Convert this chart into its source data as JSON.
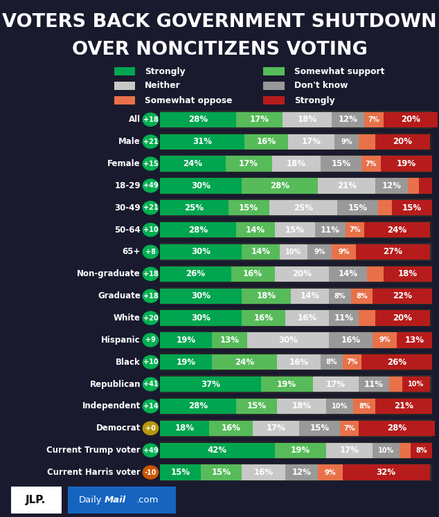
{
  "title_line1": "VOTERS BACK GOVERNMENT SHUTDOWN",
  "title_line2": "OVER NONCITIZENS VOTING",
  "rows": [
    {
      "label": "All",
      "badge": "+18",
      "badge_color": "#00b050",
      "values": [
        28,
        17,
        18,
        12,
        7,
        20
      ]
    },
    {
      "label": "Male",
      "badge": "+21",
      "badge_color": "#00b050",
      "values": [
        31,
        16,
        17,
        9,
        6,
        20
      ]
    },
    {
      "label": "Female",
      "badge": "+15",
      "badge_color": "#00b050",
      "values": [
        24,
        17,
        18,
        15,
        7,
        19
      ]
    },
    {
      "label": "18-29",
      "badge": "+49",
      "badge_color": "#00b050",
      "values": [
        30,
        28,
        21,
        12,
        4,
        5
      ]
    },
    {
      "label": "30-49",
      "badge": "+21",
      "badge_color": "#00b050",
      "values": [
        25,
        15,
        25,
        15,
        5,
        15
      ]
    },
    {
      "label": "50-64",
      "badge": "+10",
      "badge_color": "#00b050",
      "values": [
        28,
        14,
        15,
        11,
        7,
        24
      ]
    },
    {
      "label": "65+",
      "badge": "+8",
      "badge_color": "#00b050",
      "values": [
        30,
        14,
        10,
        9,
        9,
        27
      ]
    },
    {
      "label": "Non-graduate",
      "badge": "+18",
      "badge_color": "#00b050",
      "values": [
        26,
        16,
        20,
        14,
        6,
        18
      ]
    },
    {
      "label": "Graduate",
      "badge": "+18",
      "badge_color": "#00b050",
      "values": [
        30,
        18,
        14,
        8,
        8,
        22
      ]
    },
    {
      "label": "White",
      "badge": "+20",
      "badge_color": "#00b050",
      "values": [
        30,
        16,
        16,
        11,
        6,
        20
      ]
    },
    {
      "label": "Hispanic",
      "badge": "+9",
      "badge_color": "#00b050",
      "values": [
        19,
        13,
        30,
        16,
        9,
        13
      ]
    },
    {
      "label": "Black",
      "badge": "+10",
      "badge_color": "#00b050",
      "values": [
        19,
        24,
        16,
        8,
        7,
        26
      ]
    },
    {
      "label": "Republican",
      "badge": "+41",
      "badge_color": "#00b050",
      "values": [
        37,
        19,
        17,
        11,
        5,
        10
      ]
    },
    {
      "label": "Independent",
      "badge": "+14",
      "badge_color": "#00b050",
      "values": [
        28,
        15,
        18,
        10,
        8,
        21
      ]
    },
    {
      "label": "Democrat",
      "badge": "+0",
      "badge_color": "#b8960c",
      "values": [
        18,
        16,
        17,
        15,
        7,
        28
      ]
    },
    {
      "label": "Current Trump voter",
      "badge": "+49",
      "badge_color": "#00b050",
      "values": [
        42,
        19,
        17,
        10,
        4,
        8
      ]
    },
    {
      "label": "Current Harris voter",
      "badge": "-10",
      "badge_color": "#cc5500",
      "values": [
        15,
        15,
        16,
        12,
        9,
        32
      ]
    }
  ],
  "bar_colors": [
    "#00a550",
    "#57bb5a",
    "#c8c8c8",
    "#999999",
    "#e8714a",
    "#b71c1c"
  ],
  "legend_items": [
    {
      "label": "Strongly",
      "color": "#00a550"
    },
    {
      "label": "Somewhat support",
      "color": "#57bb5a"
    },
    {
      "label": "Neither",
      "color": "#c8c8c8"
    },
    {
      "label": "Don't know",
      "color": "#999999"
    },
    {
      "label": "Somewhat oppose",
      "color": "#e8714a"
    },
    {
      "label": "Strongly",
      "color": "#b71c1c"
    }
  ]
}
